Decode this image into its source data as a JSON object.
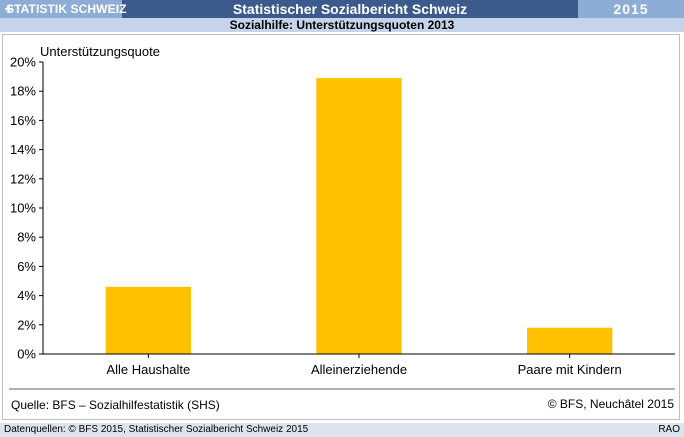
{
  "header": {
    "logo_text": "STATISTIK SCHWEIZ",
    "report_title": "Statistischer Sozialbericht Schweiz",
    "year": "2015",
    "subtitle": "Sozialhilfe: Unterstützungsquoten 2013"
  },
  "chart_data": {
    "type": "bar",
    "title": "",
    "ylabel": "Unterstützungsquote",
    "categories": [
      "Alle Haushalte",
      "Alleinerziehende",
      "Paare mit Kindern"
    ],
    "values": [
      4.6,
      18.9,
      1.8
    ],
    "ylim": [
      0,
      20
    ],
    "yticks": [
      0,
      2,
      4,
      6,
      8,
      10,
      12,
      14,
      16,
      18,
      20
    ],
    "ytick_labels": [
      "0%",
      "2%",
      "4%",
      "6%",
      "8%",
      "10%",
      "12%",
      "14%",
      "16%",
      "18%",
      "20%"
    ],
    "bar_color": "#ffc000",
    "grid": false,
    "source": "Quelle: BFS – Sozialhilfestatistik (SHS)",
    "copyright": "© BFS, Neuchâtel 2015"
  },
  "footer": {
    "left": "Datenquellen: © BFS 2015, Statistischer Sozialbericht Schweiz 2015",
    "right": "RAO"
  },
  "colors": {
    "header_dark": "#3c5a8c",
    "header_light": "#8eadd6",
    "subtitle_bg": "#c5d4ea",
    "footer_bg": "#dde4ee"
  }
}
